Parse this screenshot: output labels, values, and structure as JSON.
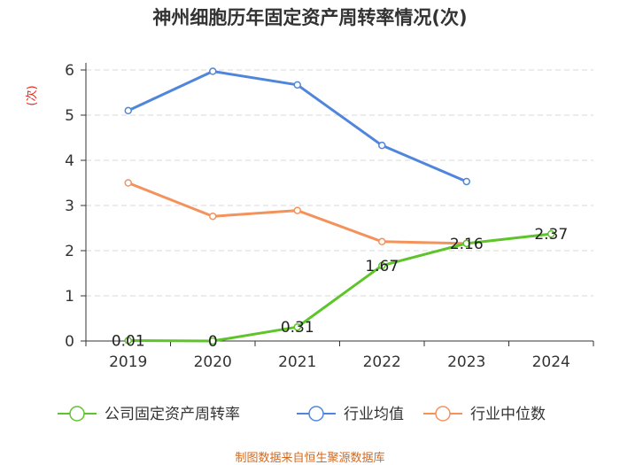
{
  "chart_data": {
    "type": "line",
    "title": "神州细胞历年固定资产周转率情况(次)",
    "ylabel": "(次)",
    "xlabel": "",
    "categories": [
      "2019",
      "2020",
      "2021",
      "2022",
      "2023",
      "2024"
    ],
    "ylim": [
      0,
      6
    ],
    "yticks": [
      0,
      1,
      2,
      3,
      4,
      5,
      6
    ],
    "grid": true,
    "legend_position": "bottom",
    "series": [
      {
        "name": "公司固定资产周转率",
        "color": "#5dc52a",
        "values": [
          0.01,
          0,
          0.31,
          1.67,
          2.16,
          2.37
        ],
        "labels": [
          "0.01",
          "0",
          "0.31",
          "1.67",
          "2.16",
          "2.37"
        ]
      },
      {
        "name": "行业均值",
        "color": "#4f86dc",
        "values": [
          5.1,
          5.97,
          5.67,
          4.33,
          3.53,
          null
        ]
      },
      {
        "name": "行业中位数",
        "color": "#f4925c",
        "values": [
          3.5,
          2.76,
          2.89,
          2.2,
          2.16,
          null
        ]
      }
    ],
    "source": "制图数据来自恒生聚源数据库"
  }
}
